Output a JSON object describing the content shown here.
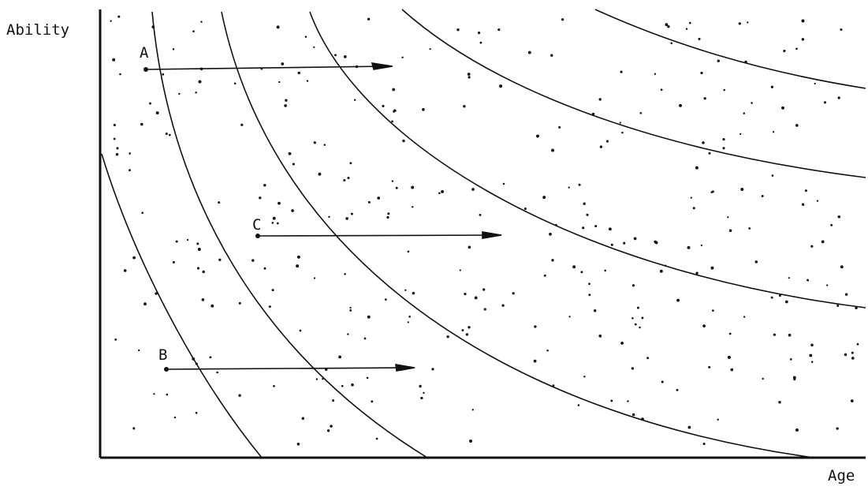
{
  "axes": {
    "y_label": "Ability",
    "x_label": "Age"
  },
  "points": {
    "a": {
      "label": "A"
    },
    "b": {
      "label": "B"
    },
    "c": {
      "label": "C"
    }
  },
  "colors": {
    "ink": "#111111",
    "background": "#ffffff"
  }
}
